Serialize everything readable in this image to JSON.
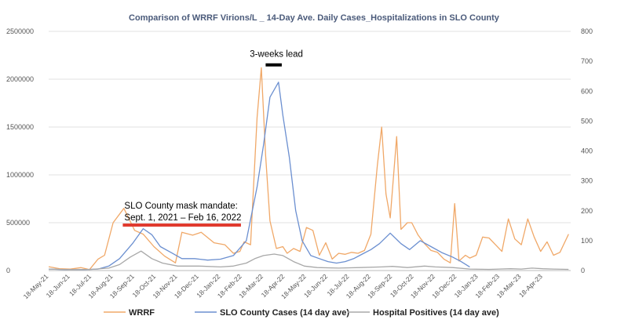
{
  "chart_data": {
    "type": "line",
    "title": "Comparison of WRRF  Virions/L _ 14-Day Ave. Daily Cases_Hospitalizations in SLO County",
    "x_tick_labels": [
      "18-May-21",
      "18-Jun-21",
      "18-Jul-21",
      "18-Aug-21",
      "18-Sep-21",
      "18-Oct-21",
      "18-Nov-21",
      "18-Dec-21",
      "18-Jan-22",
      "18-Feb-22",
      "18-Mar-22",
      "18-Apr-22",
      "18-May-22",
      "18-Jun-22",
      "18-Jul-22",
      "18-Aug-22",
      "18-Sep-22",
      "18-Oct-22",
      "18-Nov-22",
      "18-Dec-22",
      "18-Jan-23",
      "18-Feb-23",
      "18-Mar-23",
      "18-Apr-23"
    ],
    "x_range_months": [
      0,
      24.3
    ],
    "y_left": {
      "range": [
        0,
        2500000
      ],
      "ticks": [
        "0",
        "500000",
        "1000000",
        "1500000",
        "2000000",
        "2500000"
      ]
    },
    "y_right": {
      "range": [
        0,
        800
      ],
      "ticks": [
        "0",
        "100",
        "200",
        "300",
        "400",
        "500",
        "600",
        "700",
        "800"
      ]
    },
    "grid": "horizontal",
    "legend_position": "bottom",
    "series": [
      {
        "name": "WRRF",
        "axis": "left",
        "color": "#f0a868",
        "points": [
          [
            0,
            40000
          ],
          [
            0.5,
            20000
          ],
          [
            1,
            15000
          ],
          [
            1.5,
            30000
          ],
          [
            1.9,
            10000
          ],
          [
            2.3,
            120000
          ],
          [
            2.6,
            160000
          ],
          [
            3,
            500000
          ],
          [
            3.5,
            650000
          ],
          [
            4,
            420000
          ],
          [
            4.4,
            380000
          ],
          [
            4.9,
            250000
          ],
          [
            5.4,
            150000
          ],
          [
            5.9,
            80000
          ],
          [
            6.2,
            400000
          ],
          [
            6.7,
            370000
          ],
          [
            7.1,
            400000
          ],
          [
            7.7,
            290000
          ],
          [
            8.2,
            270000
          ],
          [
            8.6,
            180000
          ],
          [
            8.9,
            200000
          ],
          [
            9.1,
            300000
          ],
          [
            9.4,
            270000
          ],
          [
            9.7,
            1600000
          ],
          [
            9.9,
            2120000
          ],
          [
            10.1,
            1200000
          ],
          [
            10.3,
            520000
          ],
          [
            10.6,
            230000
          ],
          [
            10.9,
            250000
          ],
          [
            11.1,
            180000
          ],
          [
            11.4,
            230000
          ],
          [
            11.7,
            200000
          ],
          [
            12,
            450000
          ],
          [
            12.3,
            420000
          ],
          [
            12.6,
            160000
          ],
          [
            12.9,
            290000
          ],
          [
            13.2,
            120000
          ],
          [
            13.5,
            180000
          ],
          [
            13.8,
            170000
          ],
          [
            14.1,
            190000
          ],
          [
            14.4,
            180000
          ],
          [
            14.7,
            210000
          ],
          [
            15,
            380000
          ],
          [
            15.3,
            1100000
          ],
          [
            15.5,
            1500000
          ],
          [
            15.7,
            800000
          ],
          [
            15.9,
            550000
          ],
          [
            16.2,
            1400000
          ],
          [
            16.4,
            430000
          ],
          [
            16.7,
            500000
          ],
          [
            16.9,
            500000
          ],
          [
            17.2,
            370000
          ],
          [
            17.5,
            280000
          ],
          [
            17.8,
            210000
          ],
          [
            18.1,
            190000
          ],
          [
            18.4,
            120000
          ],
          [
            18.7,
            80000
          ],
          [
            18.9,
            700000
          ],
          [
            19.1,
            100000
          ],
          [
            19.4,
            160000
          ],
          [
            19.6,
            130000
          ],
          [
            19.9,
            160000
          ],
          [
            20.2,
            350000
          ],
          [
            20.5,
            340000
          ],
          [
            20.8,
            270000
          ],
          [
            21.1,
            200000
          ],
          [
            21.4,
            540000
          ],
          [
            21.7,
            330000
          ],
          [
            22,
            270000
          ],
          [
            22.3,
            540000
          ],
          [
            22.6,
            350000
          ],
          [
            22.9,
            200000
          ],
          [
            23.2,
            300000
          ],
          [
            23.5,
            160000
          ],
          [
            23.8,
            190000
          ],
          [
            24.2,
            380000
          ]
        ]
      },
      {
        "name": "SLO County Cases (14 day ave)",
        "axis": "right",
        "color": "#6b8fd0",
        "points": [
          [
            0,
            5
          ],
          [
            0.8,
            3
          ],
          [
            1.6,
            3
          ],
          [
            2.3,
            5
          ],
          [
            2.8,
            15
          ],
          [
            3.3,
            40
          ],
          [
            3.9,
            90
          ],
          [
            4.4,
            140
          ],
          [
            4.8,
            120
          ],
          [
            5.2,
            80
          ],
          [
            5.7,
            60
          ],
          [
            6.2,
            40
          ],
          [
            6.8,
            40
          ],
          [
            7.4,
            35
          ],
          [
            8,
            38
          ],
          [
            8.6,
            50
          ],
          [
            9.2,
            100
          ],
          [
            9.7,
            280
          ],
          [
            10,
            420
          ],
          [
            10.3,
            580
          ],
          [
            10.7,
            630
          ],
          [
            10.9,
            520
          ],
          [
            11.2,
            380
          ],
          [
            11.5,
            200
          ],
          [
            11.8,
            100
          ],
          [
            12.2,
            50
          ],
          [
            12.6,
            40
          ],
          [
            13,
            30
          ],
          [
            13.4,
            25
          ],
          [
            13.8,
            30
          ],
          [
            14.2,
            40
          ],
          [
            14.6,
            55
          ],
          [
            15,
            70
          ],
          [
            15.4,
            90
          ],
          [
            15.9,
            125
          ],
          [
            16.4,
            90
          ],
          [
            16.8,
            70
          ],
          [
            17.3,
            100
          ],
          [
            17.8,
            80
          ],
          [
            18.3,
            60
          ],
          [
            18.8,
            45
          ],
          [
            19.2,
            30
          ],
          [
            19.6,
            12
          ]
        ]
      },
      {
        "name": "Hospital Positives (14 day ave)",
        "axis": "right",
        "color": "#a8a8a8",
        "points": [
          [
            0,
            5
          ],
          [
            1,
            3
          ],
          [
            2,
            4
          ],
          [
            2.8,
            8
          ],
          [
            3.3,
            20
          ],
          [
            3.8,
            45
          ],
          [
            4.3,
            65
          ],
          [
            4.8,
            40
          ],
          [
            5.3,
            25
          ],
          [
            6,
            15
          ],
          [
            7,
            15
          ],
          [
            8,
            12
          ],
          [
            8.6,
            15
          ],
          [
            9.2,
            25
          ],
          [
            9.6,
            40
          ],
          [
            10,
            50
          ],
          [
            10.5,
            55
          ],
          [
            10.9,
            50
          ],
          [
            11.4,
            30
          ],
          [
            11.9,
            15
          ],
          [
            12.5,
            10
          ],
          [
            13.5,
            8
          ],
          [
            14.5,
            10
          ],
          [
            15.5,
            12
          ],
          [
            16,
            14
          ],
          [
            16.7,
            10
          ],
          [
            17.5,
            15
          ],
          [
            18,
            12
          ],
          [
            18.8,
            10
          ],
          [
            19.6,
            5
          ],
          [
            20.5,
            4
          ],
          [
            21.5,
            6
          ],
          [
            22,
            5
          ],
          [
            22.5,
            8
          ],
          [
            23,
            6
          ],
          [
            23.5,
            5
          ],
          [
            24.2,
            4
          ]
        ]
      }
    ],
    "annotations": [
      {
        "text": "3-weeks lead",
        "x_month": 10.6,
        "y_right": 688,
        "bar_from": 10.1,
        "bar_to": 10.85,
        "bar_color": "#000000"
      },
      {
        "text_line1": "SLO County mask mandate:",
        "text_line2": "Sept. 1, 2021 – Feb 16, 2022",
        "bar_from": 3.45,
        "bar_to": 8.95,
        "bar_left_value": 475000,
        "bar_color": "#e03a2e"
      }
    ]
  }
}
